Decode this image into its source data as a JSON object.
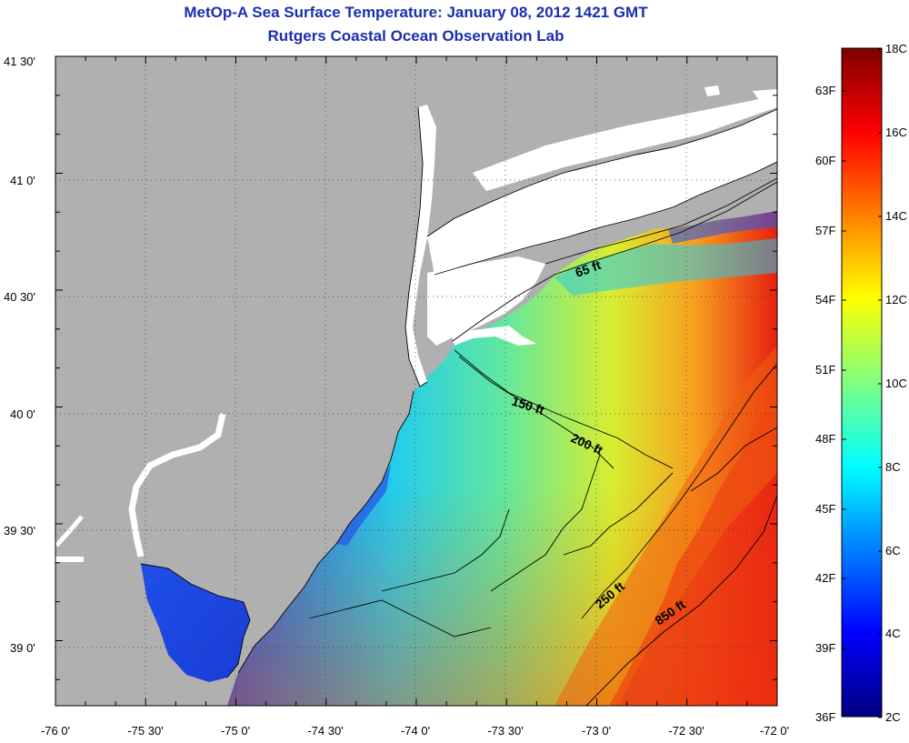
{
  "title": "MetOp-A Sea Surface Temperature:  January 08, 2012 1421 GMT",
  "subtitle": "Rutgers Coastal Ocean Observation Lab",
  "map": {
    "lon_range": [
      -76,
      -72
    ],
    "lat_range": [
      38.75,
      41.5
    ],
    "x_ticks": [
      "-76 0'",
      "-75 30'",
      "-75 0'",
      "-74 30'",
      "-74 0'",
      "-73 30'",
      "-73 0'",
      "-72 30'",
      "-72 0'"
    ],
    "y_ticks": [
      "41 30'",
      "41 0'",
      "40 30'",
      "40 0'",
      "39 30'",
      "39 0'"
    ],
    "land_color": "#b0b0b0",
    "nodata_color": "#ffffff",
    "grid": "dotted",
    "contours": [
      {
        "label": "65 ft"
      },
      {
        "label": "150 ft"
      },
      {
        "label": "200 ft"
      },
      {
        "label": "250 ft"
      },
      {
        "label": "850 ft"
      }
    ]
  },
  "colorbar": {
    "celsius_labels": [
      "18C",
      "16C",
      "14C",
      "12C",
      "10C",
      "8C",
      "6C",
      "4C",
      "2C"
    ],
    "fahrenheit_labels": [
      "63F",
      "60F",
      "57F",
      "54F",
      "51F",
      "48F",
      "45F",
      "42F",
      "39F",
      "36F"
    ],
    "colormap": "jet",
    "range_c": [
      2,
      18
    ]
  }
}
